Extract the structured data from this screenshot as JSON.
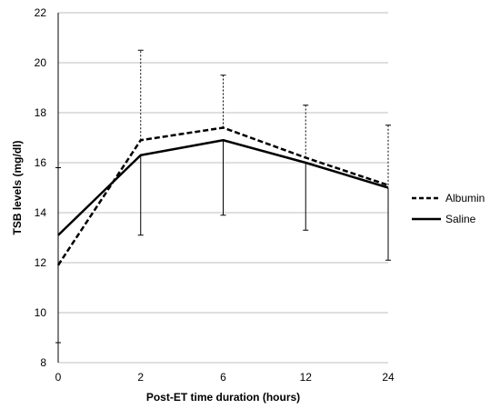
{
  "chart_data": {
    "type": "line",
    "categories": [
      "0",
      "2",
      "6",
      "12",
      "24"
    ],
    "xlabel": "Post-ET time duration (hours)",
    "ylabel": "TSB levels (mg/dl)",
    "ylim": [
      8,
      22
    ],
    "yticks": [
      "8",
      "10",
      "12",
      "14",
      "16",
      "18",
      "20",
      "22"
    ],
    "grid": "horizontal",
    "legend_position": "right",
    "series": [
      {
        "name": "Albumin",
        "style": "dashed",
        "color": "#000000",
        "values": [
          11.9,
          16.9,
          17.4,
          16.2,
          15.1
        ],
        "error_upper": [
          15.8,
          20.5,
          19.5,
          18.3,
          17.5
        ],
        "error_lower": [
          8.8,
          null,
          null,
          null,
          null
        ]
      },
      {
        "name": "Saline",
        "style": "solid",
        "color": "#000000",
        "values": [
          13.1,
          16.3,
          16.9,
          16.0,
          15.0
        ],
        "error_upper": [
          null,
          null,
          null,
          null,
          null
        ],
        "error_lower": [
          null,
          13.1,
          13.9,
          13.3,
          12.1
        ]
      }
    ]
  }
}
